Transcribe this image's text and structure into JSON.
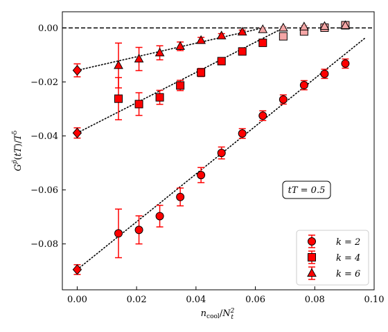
{
  "chart_data": {
    "type": "scatter",
    "xlabel": "n_cool/N_t^2",
    "ylabel": "G^p(tT)/T^5",
    "xlim": [
      -0.005,
      0.1
    ],
    "ylim": [
      -0.097,
      0.006
    ],
    "x_ticks": [
      "0.00",
      "0.02",
      "0.04",
      "0.06",
      "0.08",
      "0.10"
    ],
    "y_ticks": [
      "0.00",
      "-0.02",
      "-0.04",
      "-0.06",
      "-0.08"
    ],
    "annotation": "tT = 0.5",
    "legend_position": "lower-right",
    "reference_line_y": 0.0,
    "series": [
      {
        "name": "k = 2",
        "marker": "circle",
        "points": [
          {
            "x": 0.0139,
            "y": -0.0761,
            "err": 0.009
          },
          {
            "x": 0.0208,
            "y": -0.0748,
            "err": 0.0052
          },
          {
            "x": 0.0278,
            "y": -0.0697,
            "err": 0.004
          },
          {
            "x": 0.0347,
            "y": -0.0626,
            "err": 0.0033
          },
          {
            "x": 0.0417,
            "y": -0.0545,
            "err": 0.0028
          },
          {
            "x": 0.0486,
            "y": -0.0463,
            "err": 0.0022
          },
          {
            "x": 0.0556,
            "y": -0.0391,
            "err": 0.0018
          },
          {
            "x": 0.0625,
            "y": -0.0325,
            "err": 0.0018
          },
          {
            "x": 0.0694,
            "y": -0.0265,
            "err": 0.0017
          },
          {
            "x": 0.0764,
            "y": -0.0212,
            "err": 0.0017
          },
          {
            "x": 0.0833,
            "y": -0.017,
            "err": 0.0017
          },
          {
            "x": 0.0903,
            "y": -0.0132,
            "err": 0.0017
          }
        ],
        "extrapolated": {
          "x": 0.0,
          "y": -0.0895,
          "err": 0.0018
        },
        "fit": {
          "x0": 0.0,
          "y0": -0.0895,
          "x1": 0.0972,
          "y1": -0.0035
        }
      },
      {
        "name": "k = 4",
        "marker": "square",
        "points": [
          {
            "x": 0.0139,
            "y": -0.0262,
            "err": 0.0078
          },
          {
            "x": 0.0208,
            "y": -0.0282,
            "err": 0.0042
          },
          {
            "x": 0.0278,
            "y": -0.0257,
            "err": 0.0026
          },
          {
            "x": 0.0347,
            "y": -0.0213,
            "err": 0.0019
          },
          {
            "x": 0.0417,
            "y": -0.0165,
            "err": 0.0015
          },
          {
            "x": 0.0486,
            "y": -0.0123,
            "err": 0.0011
          },
          {
            "x": 0.0556,
            "y": -0.0087,
            "err": 0.0009
          },
          {
            "x": 0.0625,
            "y": -0.0055,
            "err": 0.0008
          },
          {
            "x": 0.0694,
            "y": -0.0031,
            "err": 0.0008,
            "light": true
          },
          {
            "x": 0.0764,
            "y": -0.0013,
            "err": 0.0008,
            "light": true
          },
          {
            "x": 0.0833,
            "y": 0.0001,
            "err": 0.0008,
            "light": true
          },
          {
            "x": 0.0903,
            "y": 0.001,
            "err": 0.0008,
            "light": true
          }
        ],
        "extrapolated": {
          "x": 0.0,
          "y": -0.0389,
          "err": 0.0019
        },
        "fit": {
          "x0": 0.0,
          "y0": -0.0389,
          "x1": 0.0694,
          "y1": 0.0
        }
      },
      {
        "name": "k = 6",
        "marker": "triangle",
        "points": [
          {
            "x": 0.0139,
            "y": -0.0139,
            "err": 0.0083
          },
          {
            "x": 0.0208,
            "y": -0.0115,
            "err": 0.0043
          },
          {
            "x": 0.0278,
            "y": -0.0092,
            "err": 0.0026
          },
          {
            "x": 0.0347,
            "y": -0.0068,
            "err": 0.0016
          },
          {
            "x": 0.0417,
            "y": -0.0046,
            "err": 0.0011
          },
          {
            "x": 0.0486,
            "y": -0.0029,
            "err": 0.0008
          },
          {
            "x": 0.0556,
            "y": -0.0015,
            "err": 0.0007
          },
          {
            "x": 0.0625,
            "y": -0.0006,
            "err": 0.0006,
            "light": true
          },
          {
            "x": 0.0694,
            "y": 0.0,
            "err": 0.0005,
            "light": true
          },
          {
            "x": 0.0764,
            "y": 0.0004,
            "err": 0.0005,
            "light": true
          },
          {
            "x": 0.0833,
            "y": 0.0006,
            "err": 0.0005,
            "light": true
          },
          {
            "x": 0.0903,
            "y": 0.0009,
            "err": 0.0005,
            "light": true
          }
        ],
        "extrapolated": {
          "x": 0.0,
          "y": -0.0157,
          "err": 0.0024
        },
        "fit": {
          "x0": 0.0,
          "y0": -0.0157,
          "x1": 0.0625,
          "y1": 0.0
        }
      }
    ]
  },
  "colors": {
    "marker": "#ff0000",
    "marker_light": "#f4a6a6",
    "edge": "#000000"
  }
}
